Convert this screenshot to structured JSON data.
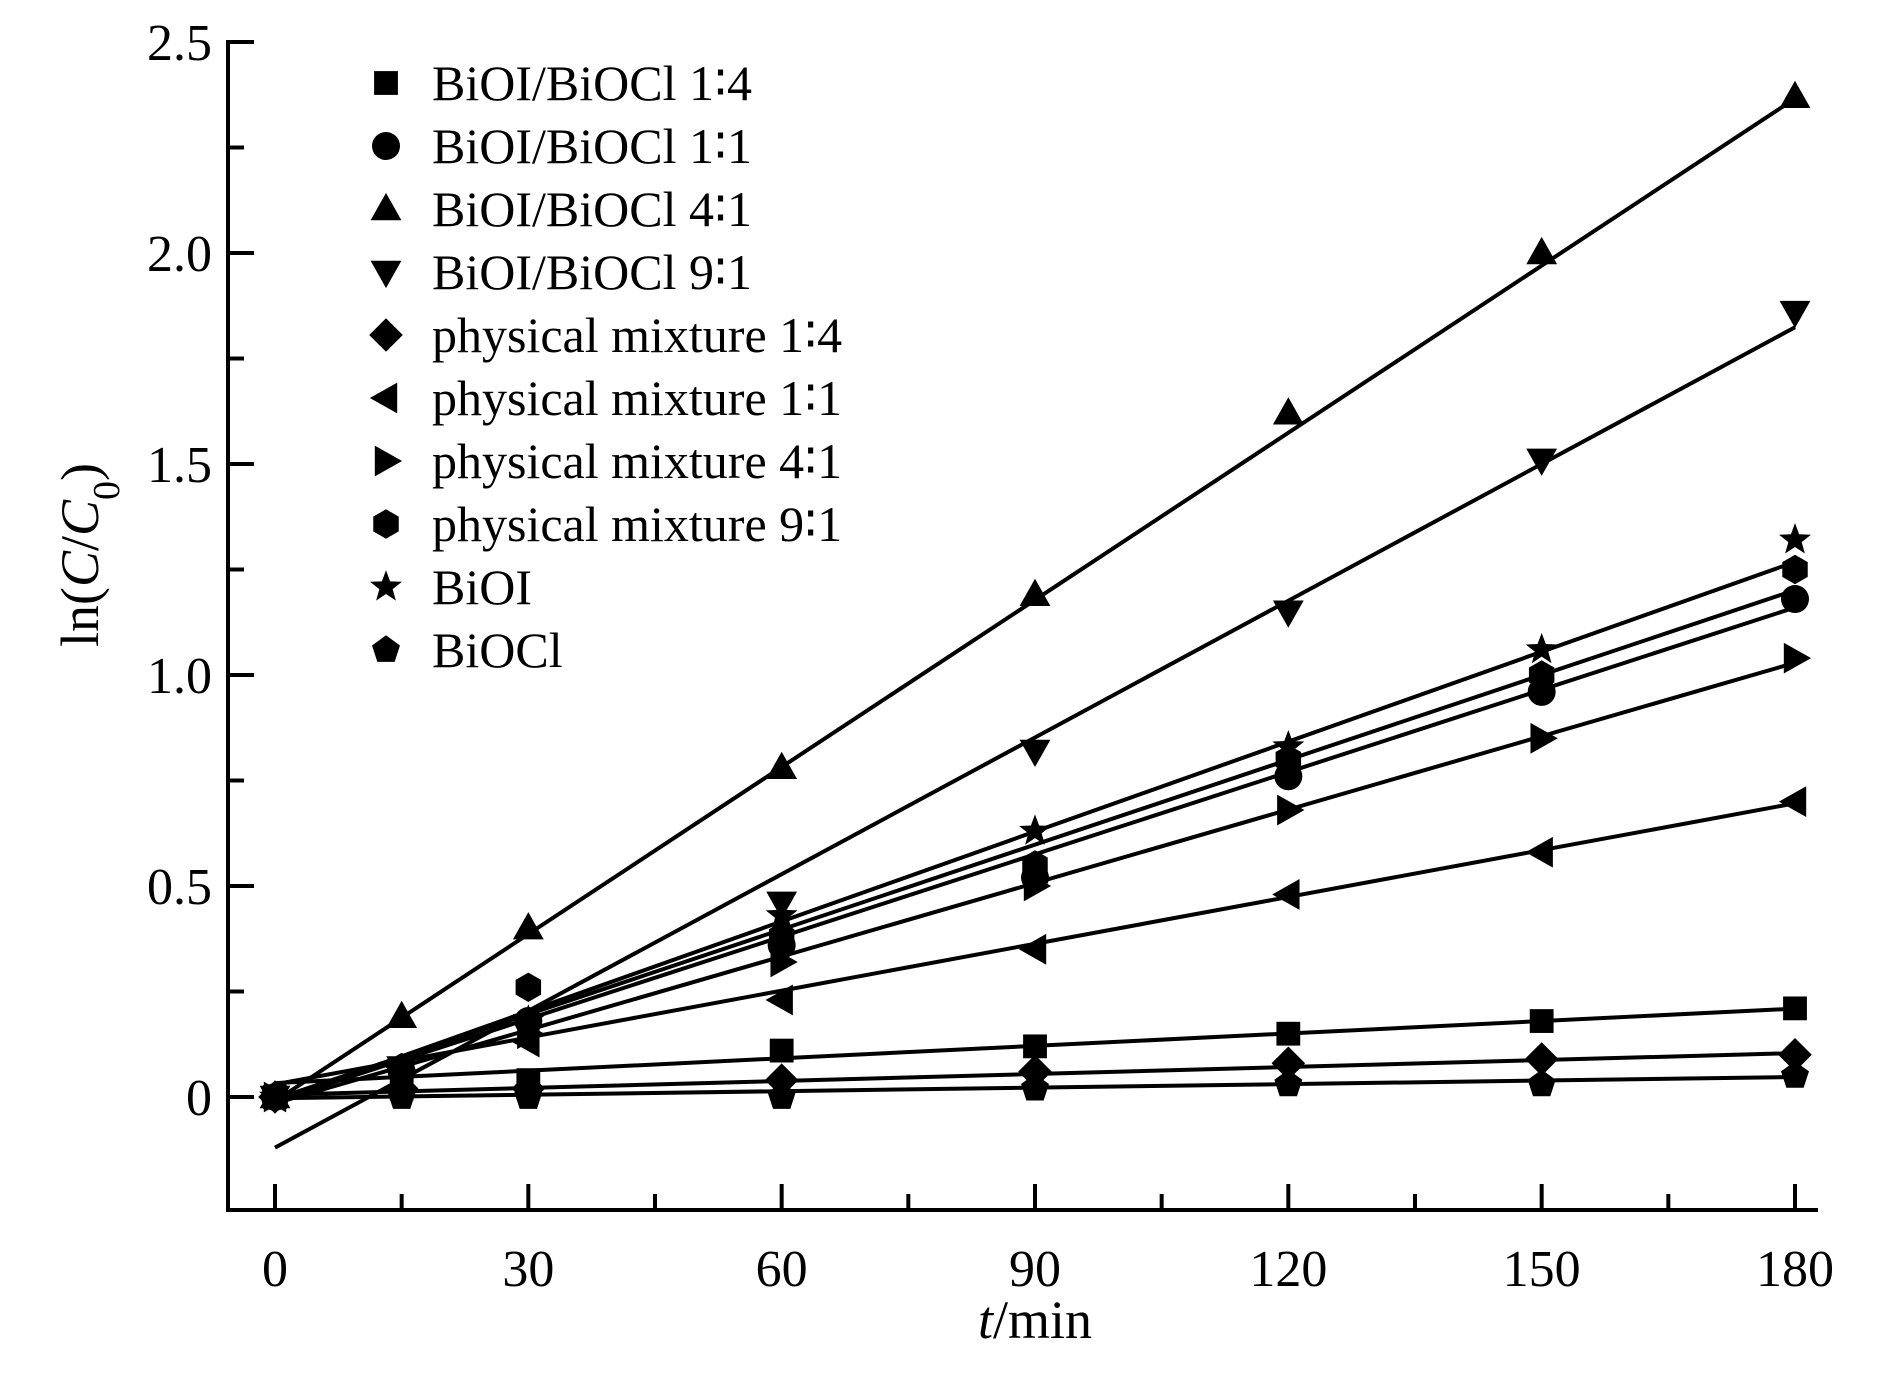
{
  "chart_data": {
    "type": "scatter",
    "title": "",
    "xlabel": "t/min",
    "xlabel_parts": {
      "var": "t",
      "unit": "/min"
    },
    "ylabel": "ln(C/C0)",
    "ylabel_parts": {
      "prefix": "ln(",
      "c": "C",
      "slash": "/",
      "c0": "C",
      "sub": "0",
      "suffix": ")"
    },
    "xlim": [
      -5,
      187
    ],
    "ylim": [
      -0.25,
      2.5
    ],
    "x_ticks": [
      0,
      30,
      60,
      90,
      120,
      150,
      180
    ],
    "x_tick_labels": [
      "0",
      "30",
      "60",
      "90",
      "120",
      "150",
      "180"
    ],
    "x_minor_ticks": [
      15,
      45,
      75,
      105,
      135,
      165
    ],
    "y_ticks": [
      0,
      0.5,
      1.0,
      1.5,
      2.0,
      2.5
    ],
    "y_tick_labels": [
      "0",
      "0.5",
      "1.0",
      "1.5",
      "2.0",
      "2.5"
    ],
    "y_minor_ticks": [
      0.25,
      0.75,
      1.25,
      1.75,
      2.25
    ],
    "grid": false,
    "legend_position": "top-left",
    "x": [
      0,
      15,
      30,
      60,
      90,
      120,
      150,
      180
    ],
    "series": [
      {
        "name": "BiOI/BiOCl 1∶4",
        "marker": "square",
        "values": [
          0,
          0.02,
          0.04,
          0.11,
          0.12,
          0.15,
          0.18,
          0.21
        ],
        "fit": [
          0.033,
          0.00098
        ]
      },
      {
        "name": "BiOI/BiOCl 1∶1",
        "marker": "circle",
        "values": [
          0,
          0.06,
          0.18,
          0.36,
          0.52,
          0.76,
          0.96,
          1.18
        ],
        "fit": [
          -0.01,
          0.0065
        ]
      },
      {
        "name": "BiOI/BiOCl 4∶1",
        "marker": "triangle-up",
        "values": [
          0,
          0.19,
          0.4,
          0.78,
          1.19,
          1.62,
          2.0,
          2.37
        ],
        "fit": [
          -0.01,
          0.0132
        ]
      },
      {
        "name": "BiOI/BiOCl 9∶1",
        "marker": "triangle-down",
        "values": [
          0,
          0.07,
          0.17,
          0.46,
          0.82,
          1.15,
          1.51,
          1.86
        ],
        "fit": [
          -0.12,
          0.0108
        ]
      },
      {
        "name": "physical mixture 1∶4",
        "marker": "diamond",
        "values": [
          0,
          0.02,
          0.02,
          0.04,
          0.06,
          0.08,
          0.09,
          0.1
        ],
        "fit": [
          0.005,
          0.00055
        ]
      },
      {
        "name": "physical mixture 1∶1",
        "marker": "triangle-left",
        "values": [
          0,
          0.07,
          0.13,
          0.23,
          0.35,
          0.48,
          0.58,
          0.7
        ],
        "fit": [
          0.03,
          0.0037
        ]
      },
      {
        "name": "physical mixture 4∶1",
        "marker": "triangle-right",
        "values": [
          0,
          0.06,
          0.15,
          0.32,
          0.5,
          0.68,
          0.85,
          1.04
        ],
        "fit": [
          -0.015,
          0.0058
        ]
      },
      {
        "name": "physical mixture 9∶1",
        "marker": "hexagon",
        "values": [
          0,
          0.07,
          0.26,
          0.38,
          0.55,
          0.8,
          1.0,
          1.25
        ],
        "fit": [
          -0.005,
          0.0067
        ]
      },
      {
        "name": "BiOI",
        "marker": "star",
        "values": [
          0,
          0.05,
          0.18,
          0.43,
          0.63,
          0.83,
          1.06,
          1.32
        ],
        "fit": [
          -0.01,
          0.0071
        ]
      },
      {
        "name": "BiOCl",
        "marker": "pentagon",
        "values": [
          0,
          0,
          0,
          0,
          0.02,
          0.03,
          0.03,
          0.05
        ],
        "fit": [
          -0.003,
          0.00028
        ]
      }
    ]
  }
}
